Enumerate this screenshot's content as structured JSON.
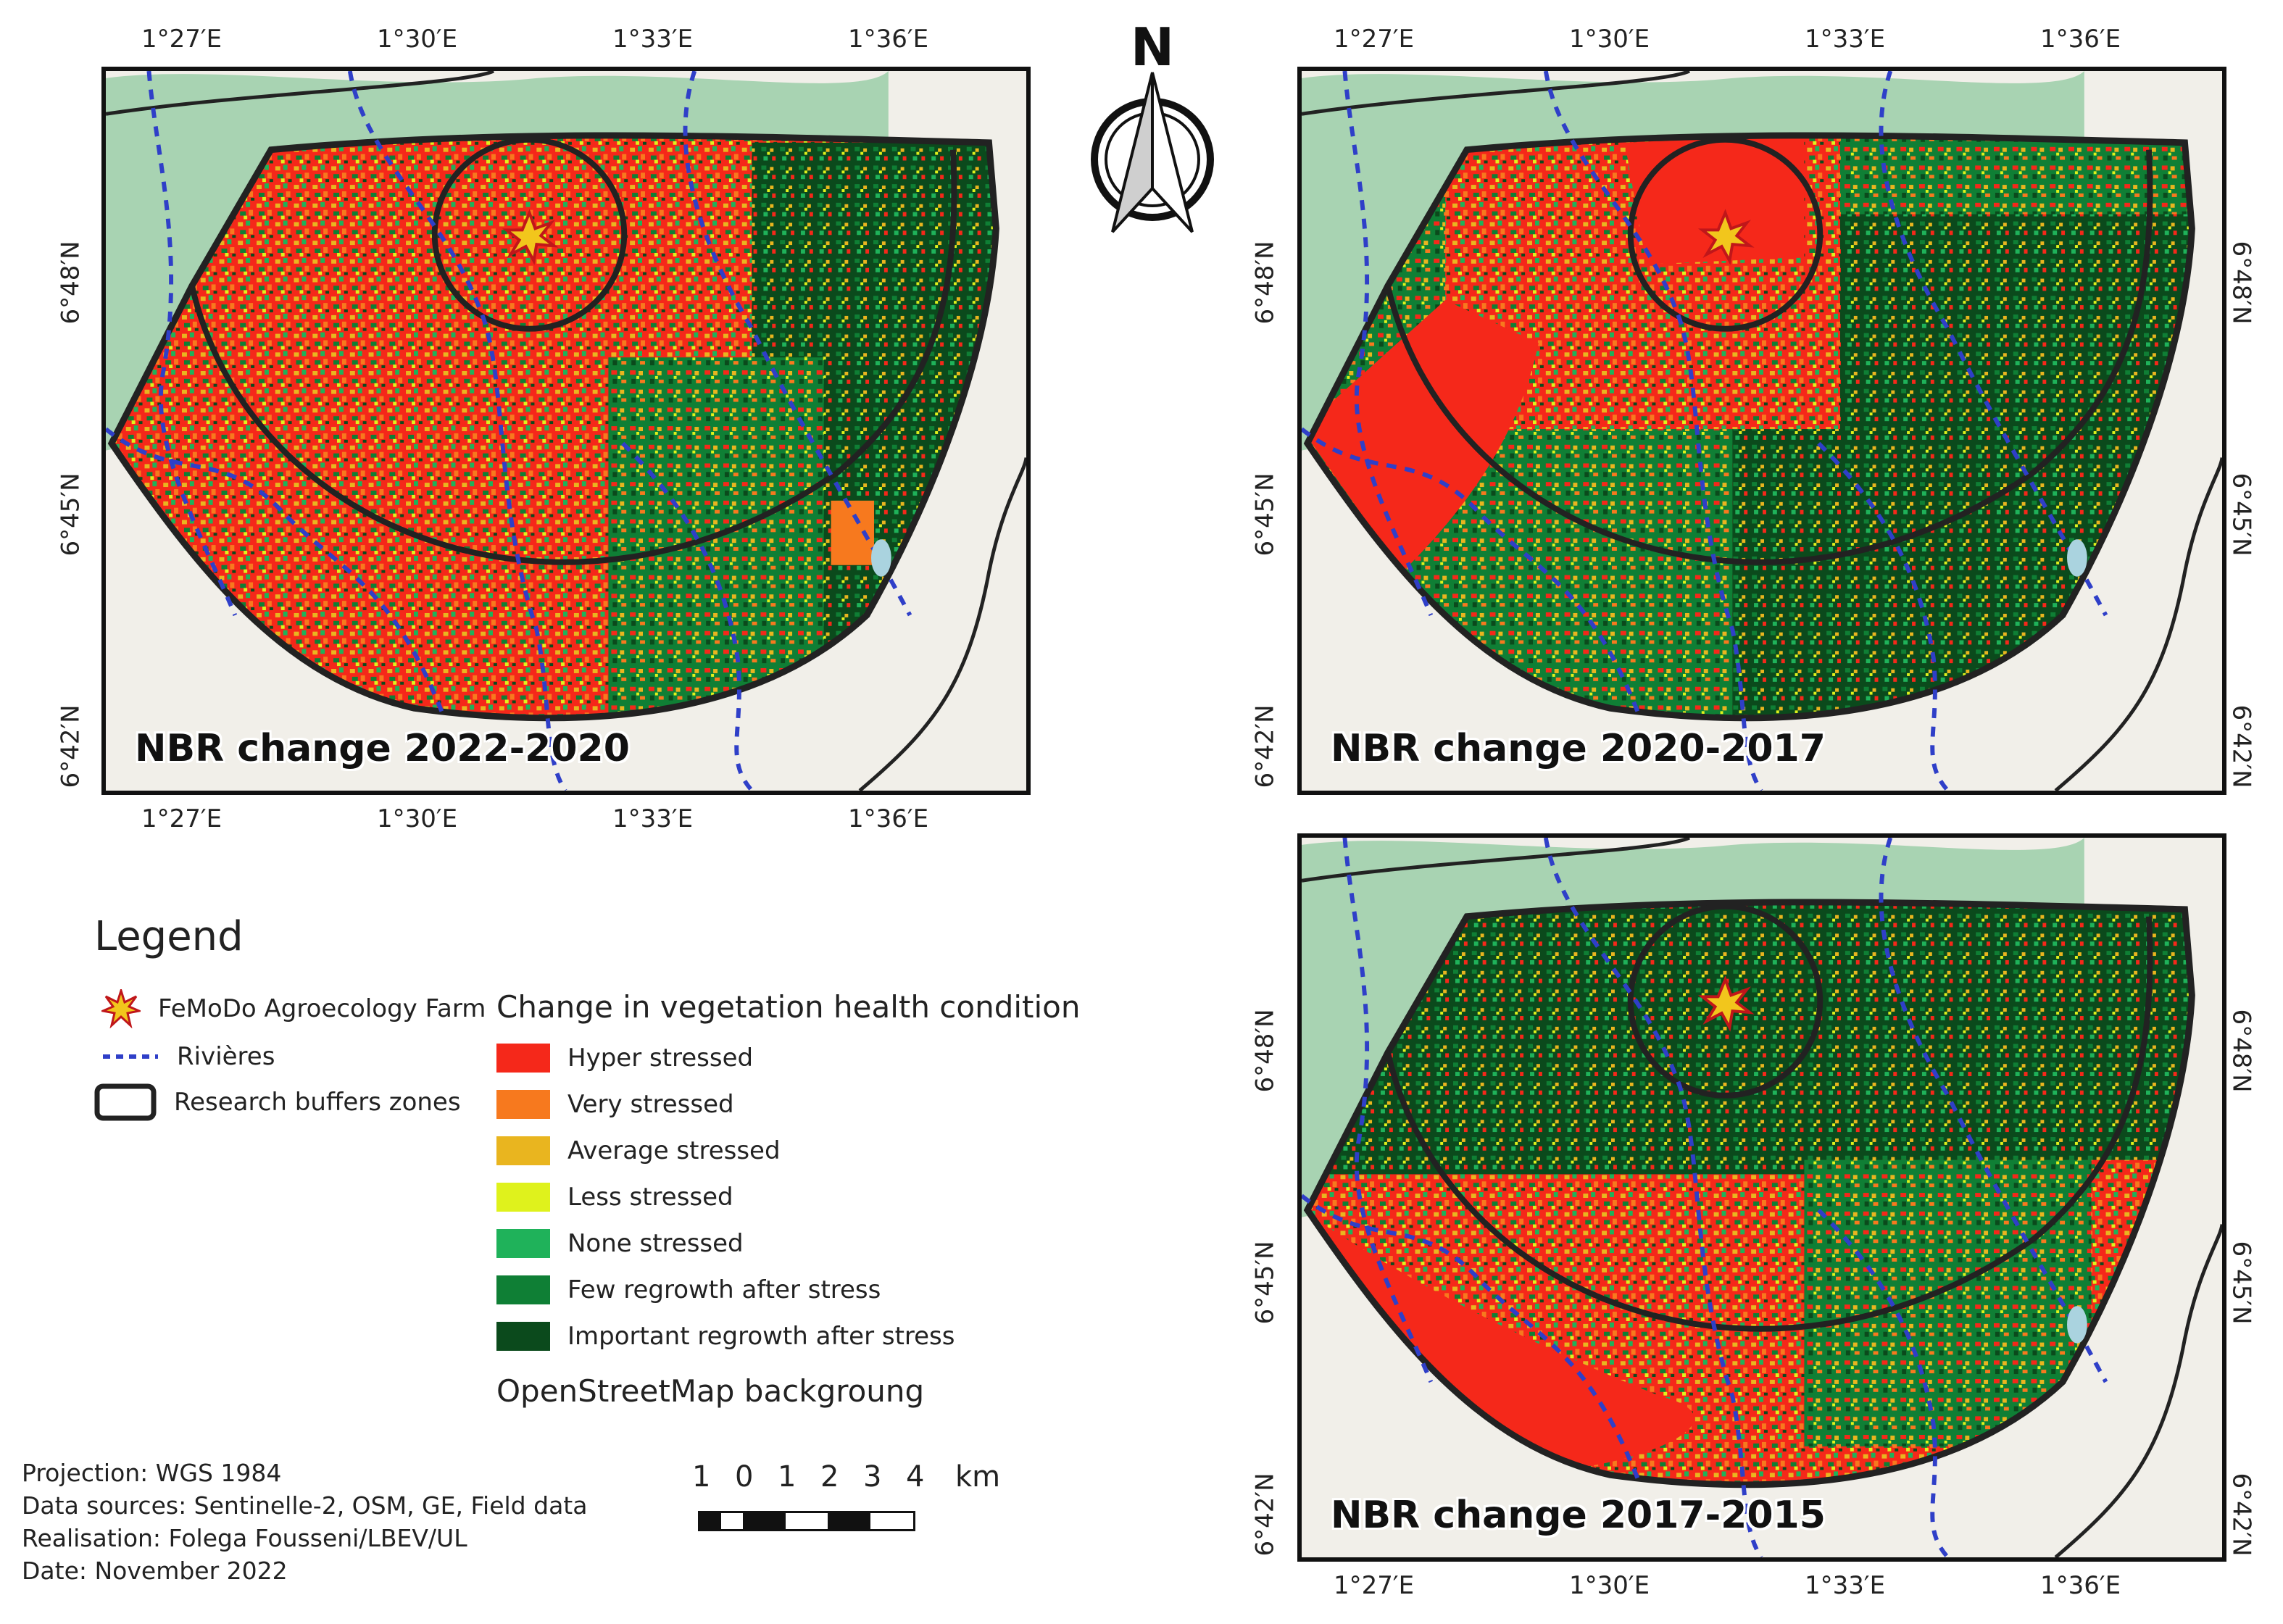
{
  "maps": [
    {
      "title": "NBR change 2022-2020"
    },
    {
      "title": "NBR change 2020-2017"
    },
    {
      "title": "NBR change 2017-2015"
    }
  ],
  "coords": {
    "lon_labels": [
      "1°27′E",
      "1°30′E",
      "1°33′E",
      "1°36′E"
    ],
    "lat_labels": [
      "6°48′N",
      "6°45′N",
      "6°42′N"
    ]
  },
  "north_arrow": {
    "label": "N"
  },
  "legend": {
    "title": "Legend",
    "symbols": [
      {
        "label": "FeMoDo Agroecology Farm",
        "icon": "star-burst-icon"
      },
      {
        "label": "Rivières",
        "icon": "dashed-line-icon"
      },
      {
        "label": "Research buffers zones",
        "icon": "rounded-rectangle-icon"
      }
    ],
    "change_heading": "Change in vegetation health condition",
    "classes": [
      {
        "label": "Hyper stressed",
        "color": "#f5281a"
      },
      {
        "label": "Very stressed",
        "color": "#f7791e"
      },
      {
        "label": "Average stressed",
        "color": "#e9b51f"
      },
      {
        "label": "Less stressed",
        "color": "#dff21c"
      },
      {
        "label": "None stressed",
        "color": "#1fb25a"
      },
      {
        "label": "Few regrowth after stress",
        "color": "#0f7f35"
      },
      {
        "label": "Important regrowth after stress",
        "color": "#0b4a1c"
      }
    ],
    "background_note": "OpenStreetMap backgroung"
  },
  "credits": {
    "projection": "Projection: WGS 1984",
    "sources": "Data sources: Sentinelle-2, OSM, GE, Field data",
    "realisation": "Realisation: Folega Fousseni/LBEV/UL",
    "date": "Date: November 2022"
  },
  "scale": {
    "ticks": [
      "1",
      "0",
      "1",
      "2",
      "3",
      "4"
    ],
    "unit": "km"
  },
  "colors": {
    "forest_reserve": "#a8d3b2",
    "river": "#2f3fc8",
    "buffer_outline": "#222222",
    "osm_background": "#f1efe9"
  }
}
